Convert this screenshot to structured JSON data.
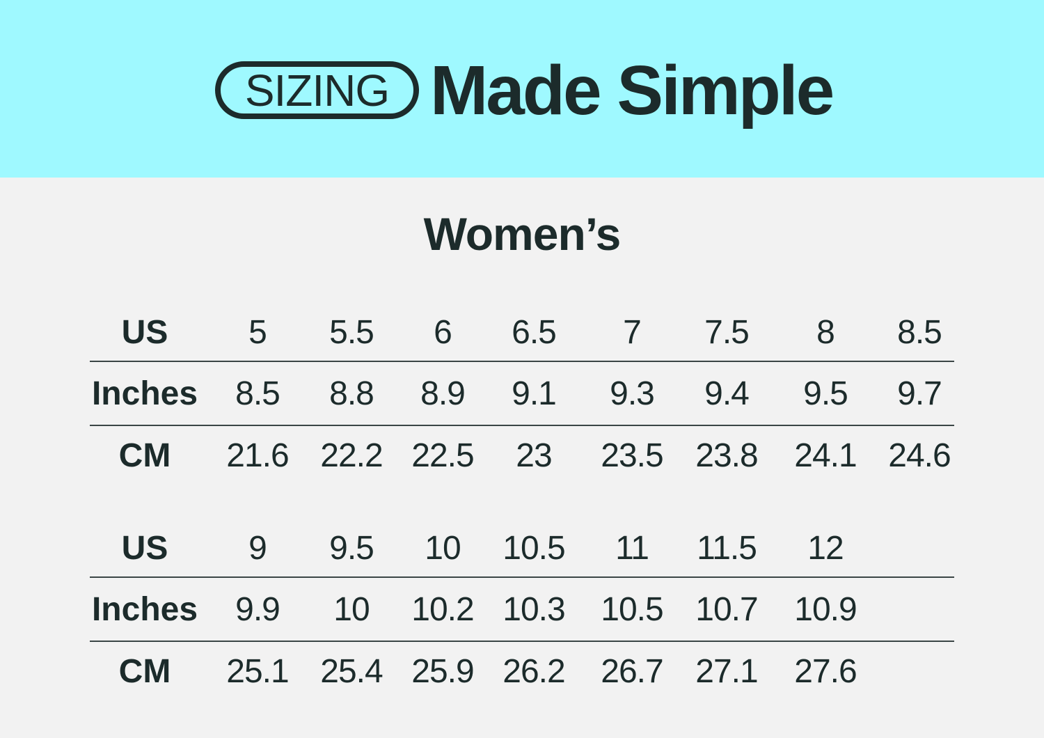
{
  "header": {
    "badge": "SIZING",
    "headline": "Made Simple",
    "background": "#9ff9ff"
  },
  "title": "Women’s",
  "tables": [
    {
      "rows": [
        {
          "label": "US",
          "values": [
            "5",
            "5.5",
            "6",
            "6.5",
            "7",
            "7.5",
            "8",
            "8.5"
          ]
        },
        {
          "label": "Inches",
          "values": [
            "8.5",
            "8.8",
            "8.9",
            "9.1",
            "9.3",
            "9.4",
            "9.5",
            "9.7"
          ]
        },
        {
          "label": "CM",
          "values": [
            "21.6",
            "22.2",
            "22.5",
            "23",
            "23.5",
            "23.8",
            "24.1",
            "24.6"
          ]
        }
      ]
    },
    {
      "rows": [
        {
          "label": "US",
          "values": [
            "9",
            "9.5",
            "10",
            "10.5",
            "11",
            "11.5",
            "12"
          ]
        },
        {
          "label": "Inches",
          "values": [
            "9.9",
            "10",
            "10.2",
            "10.3",
            "10.5",
            "10.7",
            "10.9"
          ]
        },
        {
          "label": "CM",
          "values": [
            "25.1",
            "25.4",
            "25.9",
            "26.2",
            "26.7",
            "27.1",
            "27.6"
          ]
        }
      ]
    }
  ]
}
